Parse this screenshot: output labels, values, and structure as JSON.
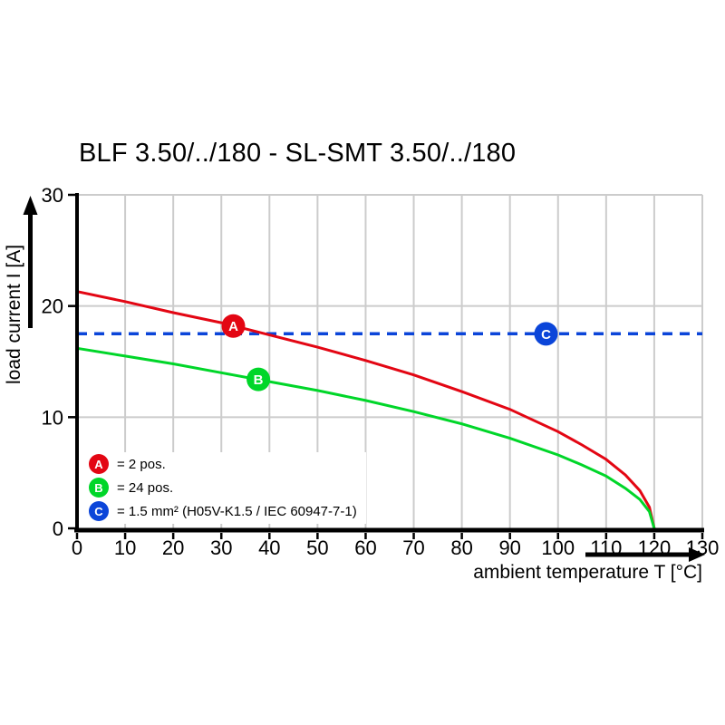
{
  "page": {
    "title": "BLF 3.50/../180 - SL-SMT 3.50/../180"
  },
  "chart_data": {
    "type": "line",
    "title": "BLF 3.50/../180 - SL-SMT 3.50/../180",
    "xlabel": "ambient temperature T [°C]",
    "ylabel": "load current I [A]",
    "xlim": [
      0,
      130
    ],
    "ylim": [
      0,
      30
    ],
    "x_ticks": [
      0,
      10,
      20,
      30,
      40,
      50,
      60,
      70,
      80,
      90,
      100,
      110,
      120,
      130
    ],
    "y_ticks": [
      0,
      10,
      20,
      30
    ],
    "grid": true,
    "grid_color": "#cccccc",
    "axis_color": "#000000",
    "series": [
      {
        "name": "2 pos.",
        "letter": "A",
        "color": "#e30613",
        "style": "solid",
        "x": [
          0,
          10,
          20,
          30,
          40,
          50,
          60,
          70,
          80,
          90,
          100,
          105,
          110,
          114,
          117,
          119,
          120
        ],
        "y": [
          21.3,
          20.4,
          19.4,
          18.5,
          17.4,
          16.3,
          15.1,
          13.8,
          12.3,
          10.7,
          8.7,
          7.5,
          6.2,
          4.8,
          3.4,
          1.9,
          0
        ]
      },
      {
        "name": "24 pos.",
        "letter": "B",
        "color": "#00d629",
        "style": "solid",
        "x": [
          0,
          10,
          20,
          30,
          40,
          50,
          60,
          70,
          80,
          90,
          100,
          105,
          110,
          114,
          117,
          119,
          120
        ],
        "y": [
          16.2,
          15.5,
          14.8,
          14.0,
          13.2,
          12.4,
          11.5,
          10.5,
          9.4,
          8.1,
          6.6,
          5.7,
          4.7,
          3.6,
          2.6,
          1.5,
          0
        ]
      },
      {
        "name": "1.5 mm² (H05V-K1.5 / IEC 60947-7-1)",
        "letter": "C",
        "color": "#0b45d9",
        "style": "dashed",
        "x": [
          0,
          130
        ],
        "y": [
          17.5,
          17.5
        ]
      }
    ],
    "markers": [
      {
        "letter": "A",
        "x": 32.5,
        "y": 18.2,
        "color": "#e30613"
      },
      {
        "letter": "B",
        "x": 37.7,
        "y": 13.4,
        "color": "#00d629"
      },
      {
        "letter": "C",
        "x": 97.5,
        "y": 17.5,
        "color": "#0b45d9"
      }
    ]
  },
  "legend": {
    "items": [
      {
        "letter": "A",
        "color": "#e30613",
        "label": "= 2 pos."
      },
      {
        "letter": "B",
        "color": "#00d629",
        "label": "= 24 pos."
      },
      {
        "letter": "C",
        "color": "#0b45d9",
        "label": "= 1.5 mm² (H05V-K1.5 / IEC 60947-7-1)"
      }
    ]
  }
}
